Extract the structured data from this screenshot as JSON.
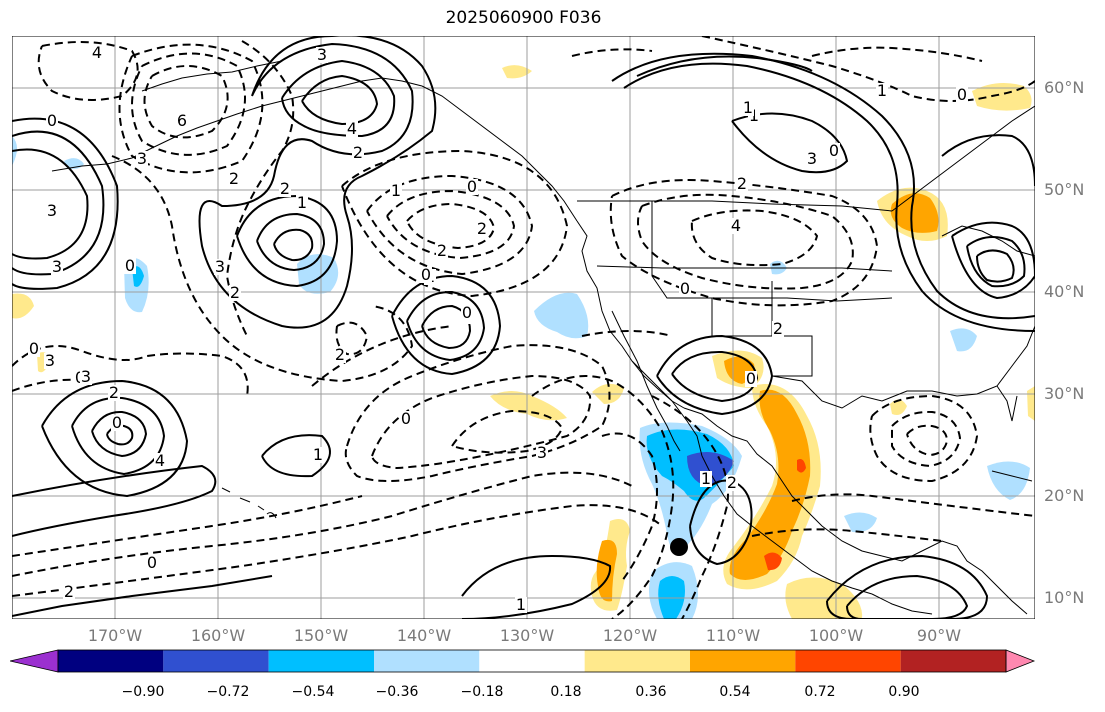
{
  "title": "2025060900 F036",
  "lat_labels": [
    "60°N",
    "50°N",
    "40°N",
    "30°N",
    "20°N",
    "10°N"
  ],
  "lon_labels": [
    "170°W",
    "160°W",
    "150°W",
    "140°W",
    "130°W",
    "120°W",
    "110°W",
    "100°W",
    "90°W"
  ],
  "colorbar": {
    "tick_labels": [
      "−0.90",
      "−0.72",
      "−0.54",
      "−0.36",
      "−0.18",
      "0.18",
      "0.36",
      "0.54",
      "0.72",
      "0.90"
    ],
    "colors": [
      "#9b30d0",
      "#000080",
      "#3050d0",
      "#00bfff",
      "#b0e0ff",
      "#ffffff",
      "#ffe98c",
      "#ffa500",
      "#ff4500",
      "#b22222",
      "#ff88b0"
    ]
  },
  "contour_labels": [
    "4",
    "6",
    "3",
    "0",
    "3",
    "4",
    "2",
    "3",
    "2",
    "2",
    "1",
    "3",
    "0",
    "3",
    "2",
    "1",
    "0",
    "2",
    "2",
    "1",
    "1",
    "2",
    "0",
    "0",
    "3",
    "0",
    "0",
    "3",
    "2",
    "0",
    "4",
    "1",
    "0",
    "3",
    "0",
    "2",
    "1",
    "0",
    "1",
    "2",
    "0",
    "2",
    "4",
    "2",
    "1",
    "1",
    "3",
    "0",
    "1",
    "0"
  ],
  "marker": {
    "name": "storm-center-marker",
    "lat": 15,
    "lon": -115
  },
  "colors": {
    "grid": "#9e9e9e",
    "land_outline": "#000000",
    "contour": "#000000"
  }
}
